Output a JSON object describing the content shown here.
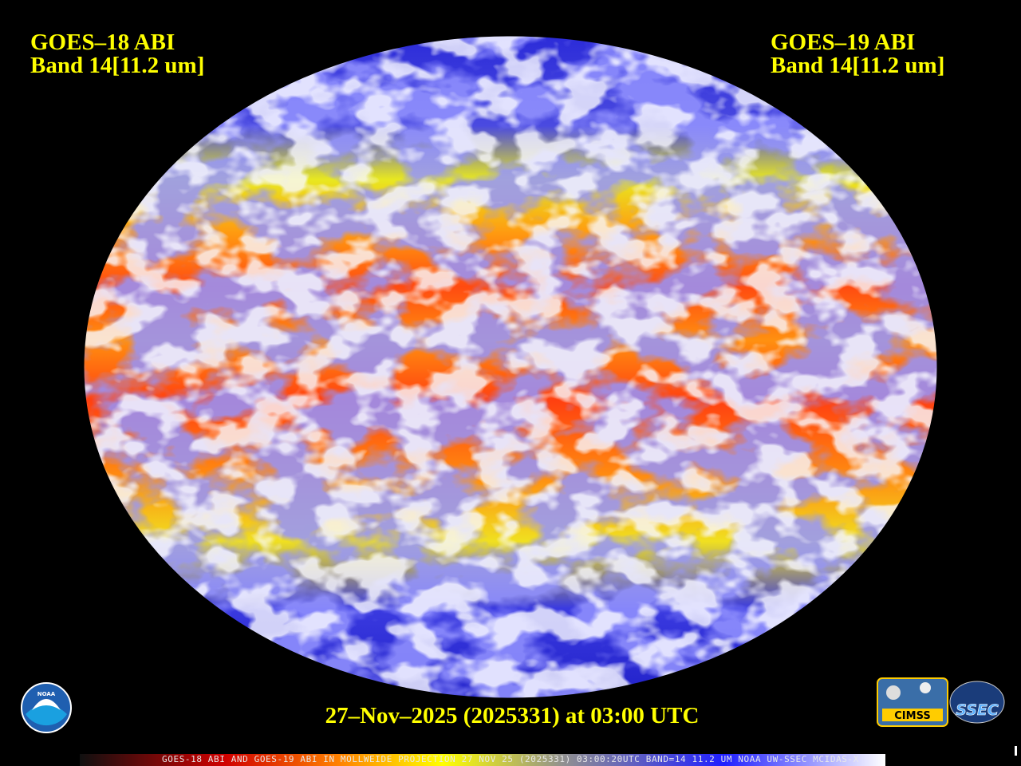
{
  "header": {
    "left": {
      "line1": "GOES–18 ABI",
      "line2": "Band 14[11.2 um]"
    },
    "right": {
      "line1": "GOES–19 ABI",
      "line2": "Band 14[11.2 um]"
    }
  },
  "timestamp": "27–Nov–2025 (2025331) at 03:00 UTC",
  "logos": {
    "noaa": "NOAA",
    "cimss": "CIMSS",
    "ssec": "SSEC"
  },
  "caption": "GOES-18 ABI AND GOES-19 ABI IN MOLLWEIDE PROJECTION 27 NOV 25 (2025331) 03:00:20UTC BAND=14 11.2 UM NOAA UW-SSEC MCIDAS-X"
}
